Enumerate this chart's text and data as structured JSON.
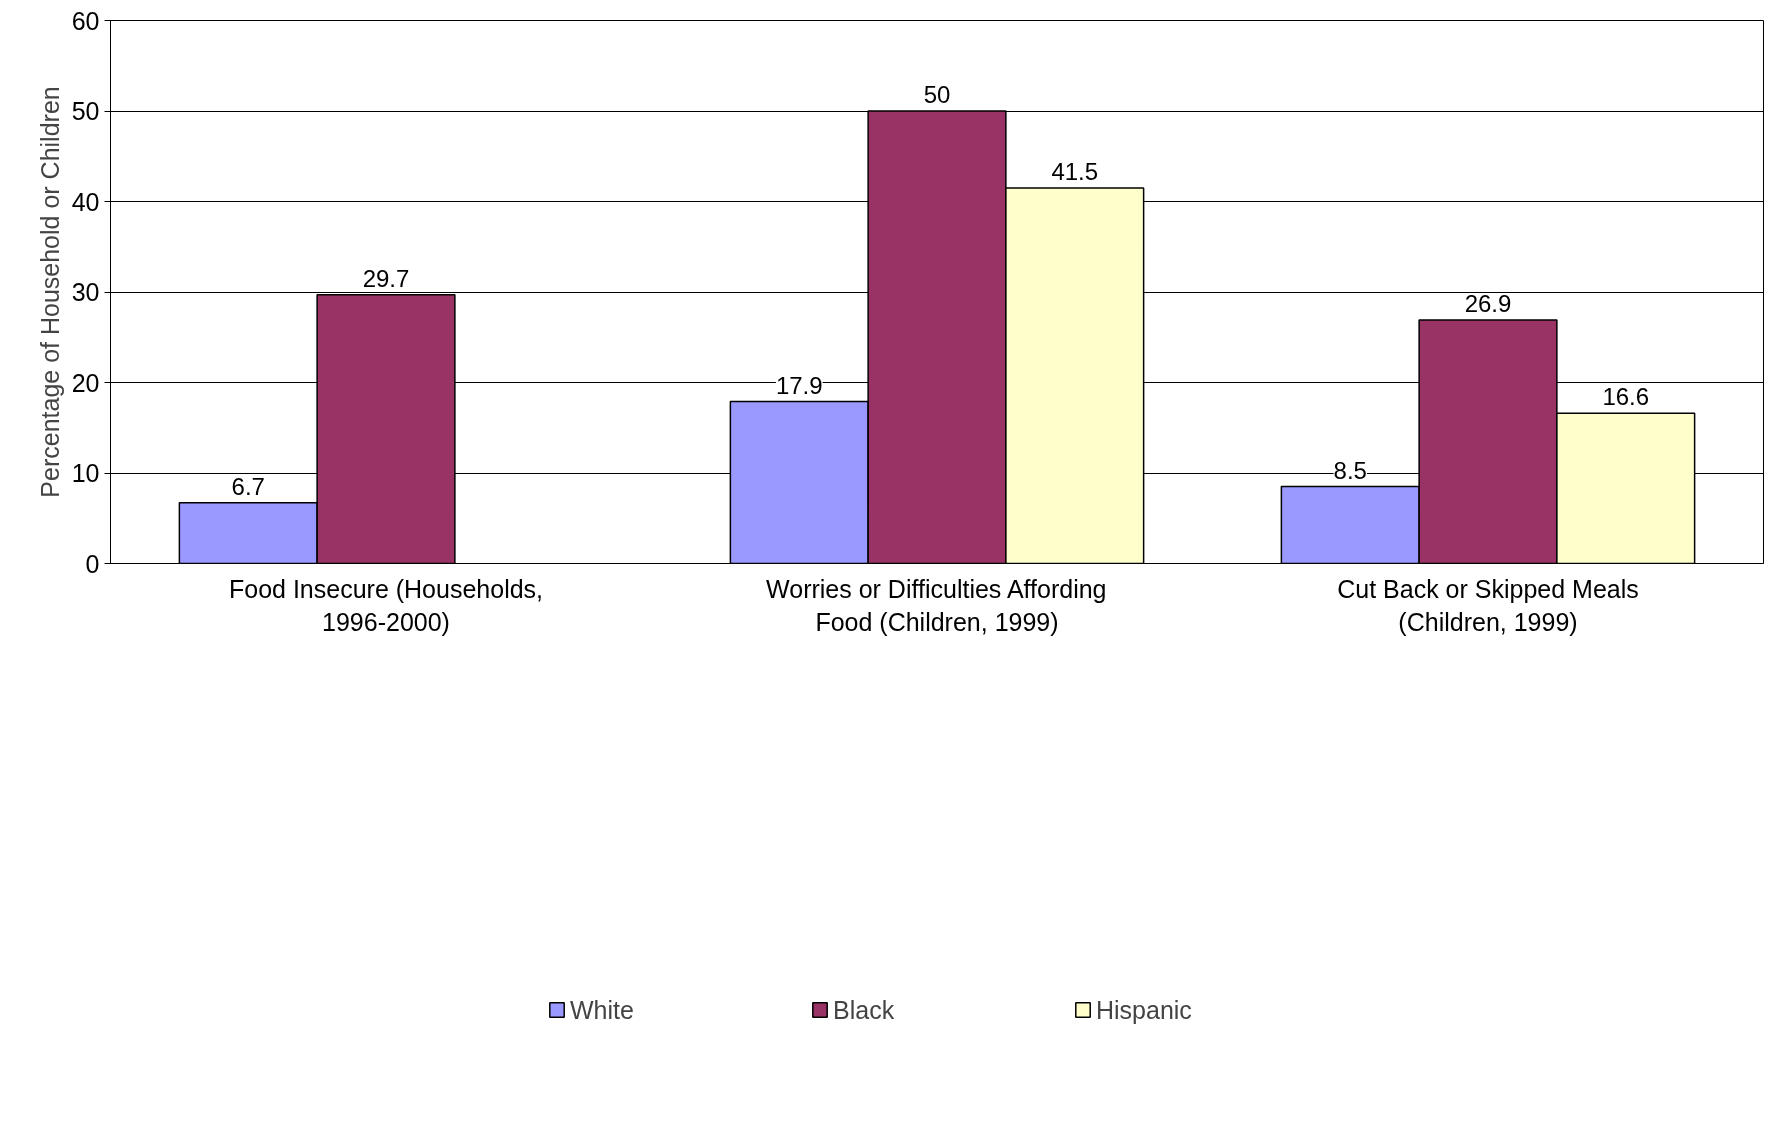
{
  "chart_data": {
    "type": "bar",
    "ylabel": "Percentage of Household or Children",
    "categories": [
      "Food Insecure (Households, 1996-2000)",
      "Worries or Difficulties Affording Food (Children, 1999)",
      "Cut Back or Skipped Meals (Children, 1999)"
    ],
    "series": [
      {
        "name": "White",
        "color": "#9999ff",
        "values": [
          6.7,
          17.9,
          8.5
        ]
      },
      {
        "name": "Black",
        "color": "#993366",
        "values": [
          29.7,
          50,
          26.9
        ]
      },
      {
        "name": "Hispanic",
        "color": "#ffffcc",
        "values": [
          null,
          41.5,
          16.6
        ]
      }
    ],
    "ylim": [
      0,
      60
    ],
    "yticks": [
      0,
      10,
      20,
      30,
      40,
      50,
      60
    ],
    "grid": "y",
    "legend": "bottom",
    "data_labels": true
  }
}
